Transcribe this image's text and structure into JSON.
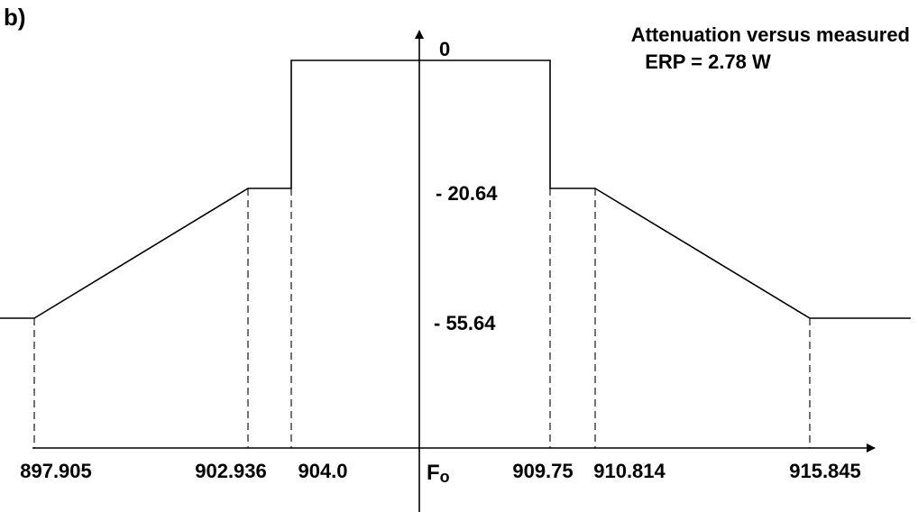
{
  "panel_label": "b)",
  "title": {
    "line1": "Attenuation versus measured",
    "line2": "ERP = 2.78 W"
  },
  "y_axis": {
    "zero_label": "0"
  },
  "levels": [
    {
      "value": "- 20.64"
    },
    {
      "value": "- 55.64"
    }
  ],
  "x_axis": {
    "center_main": "F",
    "center_sub": "o",
    "ticks": [
      "897.905",
      "902.936",
      "904.0",
      "909.75",
      "910.814",
      "915.845"
    ]
  },
  "mask": {
    "frequencies": [
      897.905,
      902.936,
      904.0,
      909.75,
      910.814,
      915.845
    ],
    "attenuation_db": [
      0,
      -20.64,
      -55.64
    ]
  }
}
